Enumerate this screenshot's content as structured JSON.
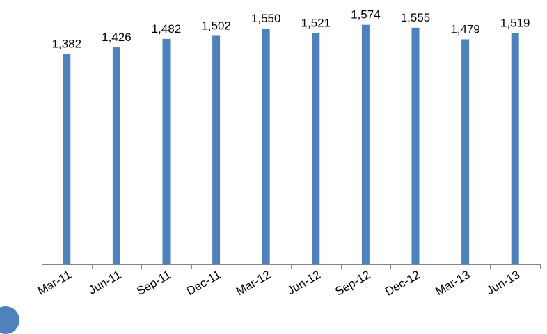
{
  "chart_data": {
    "type": "bar",
    "categories": [
      "Mar-11",
      "Jun-11",
      "Sep-11",
      "Dec-11",
      "Mar-12",
      "Jun-12",
      "Sep-12",
      "Dec-12",
      "Mar-13",
      "Jun-13"
    ],
    "values": [
      1382,
      1426,
      1482,
      1502,
      1550,
      1521,
      1574,
      1555,
      1479,
      1519
    ],
    "data_labels": [
      "1,382",
      "1,426",
      "1,482",
      "1,502",
      "1,550",
      "1,521",
      "1,574",
      "1,555",
      "1,479",
      "1,519"
    ],
    "title": "",
    "xlabel": "",
    "ylabel": "",
    "ylim": [
      0,
      1600
    ],
    "grid": false,
    "y_axis_visible": false,
    "bar_color": "#4f81bd",
    "axis_color": "#868686"
  }
}
